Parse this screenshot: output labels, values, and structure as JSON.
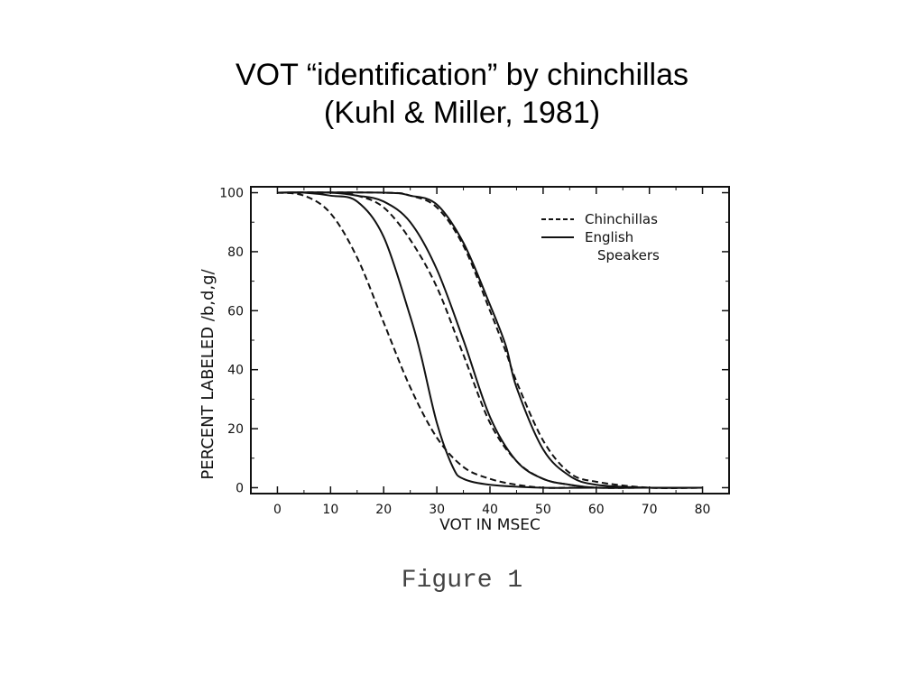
{
  "slide": {
    "title_line1": "VOT “identification” by chinchillas",
    "title_line2": "(Kuhl & Miller, 1981)",
    "caption": "Figure 1"
  },
  "chart_data": {
    "type": "line",
    "title": "",
    "xlabel": "VOT IN MSEC",
    "ylabel": "PERCENT LABELED /b,d,g/",
    "xlim": [
      -5,
      85
    ],
    "ylim": [
      -2,
      102
    ],
    "xticks": [
      0,
      10,
      20,
      30,
      40,
      50,
      60,
      70,
      80
    ],
    "yticks": [
      0,
      20,
      40,
      60,
      80,
      100
    ],
    "grid": false,
    "legend": {
      "position": "top-right",
      "entries": [
        {
          "label": "Chinchillas",
          "style": "dashed"
        },
        {
          "label": "English",
          "style": "solid"
        },
        {
          "label": "Speakers",
          "style": "none"
        }
      ]
    },
    "series": [
      {
        "group": "Chinchillas",
        "style": "dashed",
        "x": [
          0,
          5,
          10,
          15,
          20,
          25,
          30,
          35,
          40,
          45,
          50,
          55,
          60,
          70,
          80
        ],
        "y": [
          100,
          99,
          93,
          78,
          56,
          34,
          17,
          7,
          3,
          1,
          0,
          0,
          0,
          0,
          0
        ]
      },
      {
        "group": "English Speakers",
        "style": "solid",
        "x": [
          0,
          5,
          10,
          15,
          20,
          25,
          27,
          30,
          33,
          35,
          40,
          50,
          60,
          70,
          80
        ],
        "y": [
          100,
          100,
          99,
          97,
          85,
          58,
          45,
          22,
          7,
          3,
          1,
          0,
          0,
          0,
          0
        ]
      },
      {
        "group": "Chinchillas",
        "style": "dashed",
        "x": [
          0,
          10,
          15,
          20,
          25,
          30,
          35,
          40,
          45,
          50,
          55,
          60,
          70,
          80
        ],
        "y": [
          100,
          100,
          99,
          95,
          84,
          68,
          45,
          22,
          9,
          3,
          1,
          0,
          0,
          0
        ]
      },
      {
        "group": "English Speakers",
        "style": "solid",
        "x": [
          0,
          10,
          15,
          20,
          25,
          30,
          35,
          40,
          45,
          50,
          55,
          60,
          70,
          80
        ],
        "y": [
          100,
          100,
          99,
          97,
          90,
          74,
          50,
          24,
          9,
          3,
          1,
          0,
          0,
          0
        ]
      },
      {
        "group": "Chinchillas",
        "style": "dashed",
        "x": [
          0,
          20,
          25,
          30,
          35,
          40,
          43,
          45,
          50,
          55,
          60,
          70,
          80
        ],
        "y": [
          100,
          100,
          99,
          95,
          82,
          60,
          46,
          36,
          16,
          5,
          2,
          0,
          0
        ]
      },
      {
        "group": "English Speakers",
        "style": "solid",
        "x": [
          0,
          20,
          25,
          30,
          35,
          40,
          43,
          45,
          50,
          55,
          60,
          70,
          80
        ],
        "y": [
          100,
          100,
          99,
          96,
          83,
          62,
          48,
          34,
          13,
          4,
          1,
          0,
          0
        ]
      }
    ]
  }
}
